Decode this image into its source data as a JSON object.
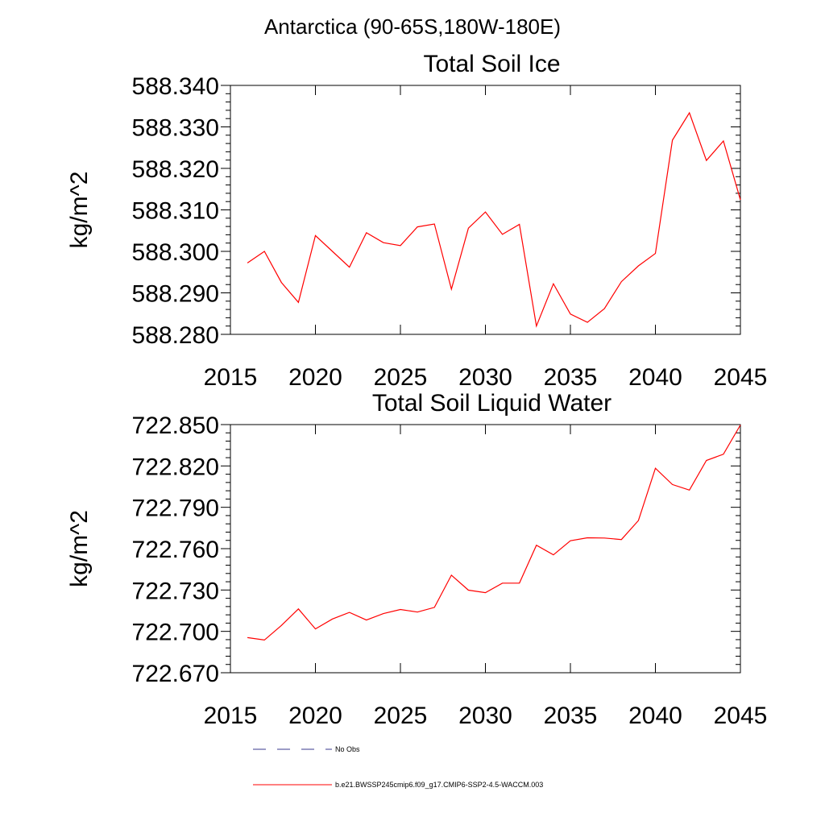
{
  "figure": {
    "title": "Antarctica (90-65S,180W-180E)"
  },
  "chart_data": [
    {
      "type": "line",
      "title": "Total Soil Ice",
      "xlabel": "",
      "ylabel": "kg/m^2",
      "xlim": [
        2015,
        2045
      ],
      "ylim": [
        588.28,
        588.34
      ],
      "x_ticks": [
        "2015",
        "2020",
        "2025",
        "2030",
        "2035",
        "2040",
        "2045"
      ],
      "y_ticks": [
        "588.340",
        "588.330",
        "588.320",
        "588.310",
        "588.300",
        "588.290",
        "588.280"
      ],
      "grid": false,
      "x": [
        2016,
        2017,
        2018,
        2019,
        2020,
        2021,
        2022,
        2023,
        2024,
        2025,
        2026,
        2027,
        2028,
        2029,
        2030,
        2031,
        2032,
        2033,
        2034,
        2035,
        2036,
        2037,
        2038,
        2039,
        2040,
        2041,
        2042,
        2043,
        2044,
        2045
      ],
      "series": [
        {
          "name": "b.e21.BWSSP245cmip6.f09_g17.CMIP6-SSP2-4.5-WACCM.003",
          "color": "#ff0000",
          "values": [
            588.2972,
            588.3,
            588.2925,
            588.2877,
            588.3038,
            588.3,
            588.2962,
            588.3045,
            588.3021,
            588.3014,
            588.3059,
            588.3066,
            588.2909,
            588.3056,
            588.3095,
            588.3041,
            588.3065,
            588.282,
            588.2922,
            588.2849,
            588.2829,
            588.2862,
            588.2927,
            588.2965,
            588.2995,
            588.3268,
            588.3334,
            588.3219,
            588.3266,
            588.3124
          ]
        }
      ]
    },
    {
      "type": "line",
      "title": "Total Soil Liquid Water",
      "xlabel": "",
      "ylabel": "kg/m^2",
      "xlim": [
        2015,
        2045
      ],
      "ylim": [
        722.67,
        722.85
      ],
      "x_ticks": [
        "2015",
        "2020",
        "2025",
        "2030",
        "2035",
        "2040",
        "2045"
      ],
      "y_ticks": [
        "722.850",
        "722.820",
        "722.790",
        "722.760",
        "722.730",
        "722.700",
        "722.670"
      ],
      "grid": false,
      "x": [
        2016,
        2017,
        2018,
        2019,
        2020,
        2021,
        2022,
        2023,
        2024,
        2025,
        2026,
        2027,
        2028,
        2029,
        2030,
        2031,
        2032,
        2033,
        2034,
        2035,
        2036,
        2037,
        2038,
        2039,
        2040,
        2041,
        2042,
        2043,
        2044,
        2045
      ],
      "series": [
        {
          "name": "b.e21.BWSSP245cmip6.f09_g17.CMIP6-SSP2-4.5-WACCM.003",
          "color": "#ff0000",
          "values": [
            722.6955,
            722.6937,
            722.7043,
            722.7163,
            722.7018,
            722.709,
            722.7138,
            722.7082,
            722.7129,
            722.7159,
            722.714,
            722.7174,
            722.7408,
            722.7299,
            722.7281,
            722.735,
            722.735,
            722.7625,
            722.7555,
            722.7657,
            722.7679,
            722.7677,
            722.7666,
            722.7804,
            722.8183,
            722.8065,
            722.8025,
            722.824,
            722.8285,
            722.8497
          ]
        }
      ]
    }
  ],
  "legend": {
    "items": [
      {
        "label": "No Obs",
        "color": "#3a3a8c",
        "style": "dashed"
      },
      {
        "label": "b.e21.BWSSP245cmip6.f09_g17.CMIP6-SSP2-4.5-WACCM.003",
        "color": "#ff0000",
        "style": "solid"
      }
    ]
  }
}
